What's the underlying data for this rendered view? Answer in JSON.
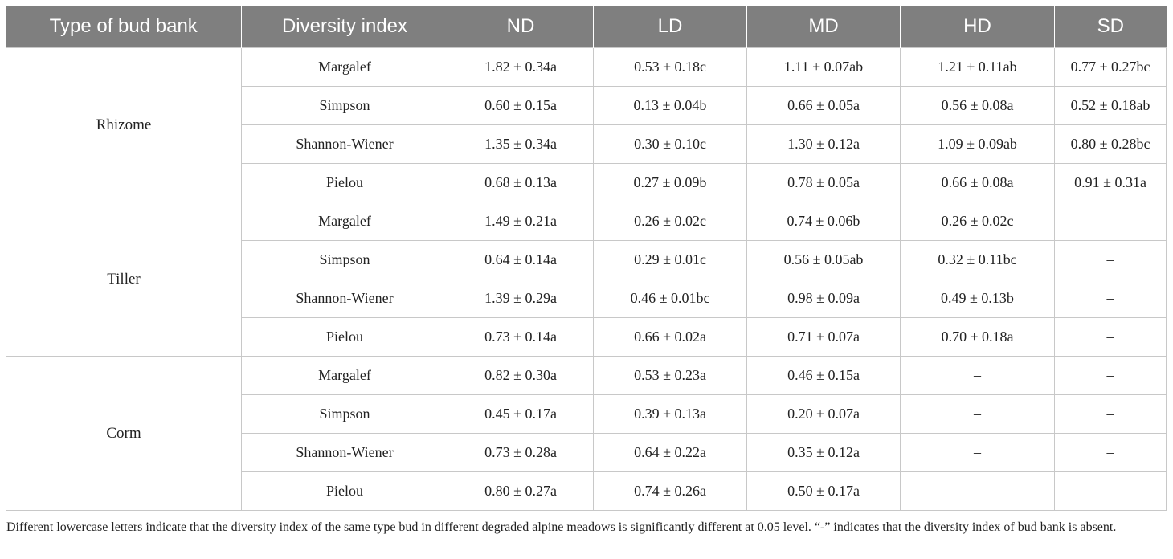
{
  "table": {
    "headers": [
      "Type of bud bank",
      "Diversity index",
      "ND",
      "LD",
      "MD",
      "HD",
      "SD"
    ],
    "groups": [
      {
        "type": "Rhizome",
        "rows": [
          {
            "index": "Margalef",
            "values": [
              "1.82 ± 0.34a",
              "0.53 ± 0.18c",
              "1.11 ± 0.07ab",
              "1.21 ± 0.11ab",
              "0.77 ± 0.27bc"
            ]
          },
          {
            "index": "Simpson",
            "values": [
              "0.60 ± 0.15a",
              "0.13 ± 0.04b",
              "0.66 ± 0.05a",
              "0.56 ± 0.08a",
              "0.52 ± 0.18ab"
            ]
          },
          {
            "index": "Shannon-Wiener",
            "values": [
              "1.35 ± 0.34a",
              "0.30 ± 0.10c",
              "1.30 ± 0.12a",
              "1.09 ± 0.09ab",
              "0.80 ± 0.28bc"
            ]
          },
          {
            "index": "Pielou",
            "values": [
              "0.68 ± 0.13a",
              "0.27 ± 0.09b",
              "0.78 ± 0.05a",
              "0.66 ± 0.08a",
              "0.91 ± 0.31a"
            ]
          }
        ]
      },
      {
        "type": "Tiller",
        "rows": [
          {
            "index": "Margalef",
            "values": [
              "1.49 ± 0.21a",
              "0.26 ± 0.02c",
              "0.74 ± 0.06b",
              "0.26 ± 0.02c",
              "–"
            ]
          },
          {
            "index": "Simpson",
            "values": [
              "0.64 ± 0.14a",
              "0.29 ± 0.01c",
              "0.56 ± 0.05ab",
              "0.32 ± 0.11bc",
              "–"
            ]
          },
          {
            "index": "Shannon-Wiener",
            "values": [
              "1.39 ± 0.29a",
              "0.46 ± 0.01bc",
              "0.98 ± 0.09a",
              "0.49 ± 0.13b",
              "–"
            ]
          },
          {
            "index": "Pielou",
            "values": [
              "0.73 ± 0.14a",
              "0.66 ± 0.02a",
              "0.71 ± 0.07a",
              "0.70 ± 0.18a",
              "–"
            ]
          }
        ]
      },
      {
        "type": "Corm",
        "rows": [
          {
            "index": "Margalef",
            "values": [
              "0.82 ± 0.30a",
              "0.53 ± 0.23a",
              "0.46 ± 0.15a",
              "–",
              "–"
            ]
          },
          {
            "index": "Simpson",
            "values": [
              "0.45 ± 0.17a",
              "0.39 ± 0.13a",
              "0.20 ± 0.07a",
              "–",
              "–"
            ]
          },
          {
            "index": "Shannon-Wiener",
            "values": [
              "0.73 ± 0.28a",
              "0.64 ± 0.22a",
              "0.35 ± 0.12a",
              "–",
              "–"
            ]
          },
          {
            "index": "Pielou",
            "values": [
              "0.80 ± 0.27a",
              "0.74 ± 0.26a",
              "0.50 ± 0.17a",
              "–",
              "–"
            ]
          }
        ]
      }
    ],
    "footnote": "Different lowercase letters indicate that the diversity index of the same type bud in different degraded alpine meadows is significantly different at 0.05 level. “-” indicates that the diversity index of bud bank is absent."
  }
}
